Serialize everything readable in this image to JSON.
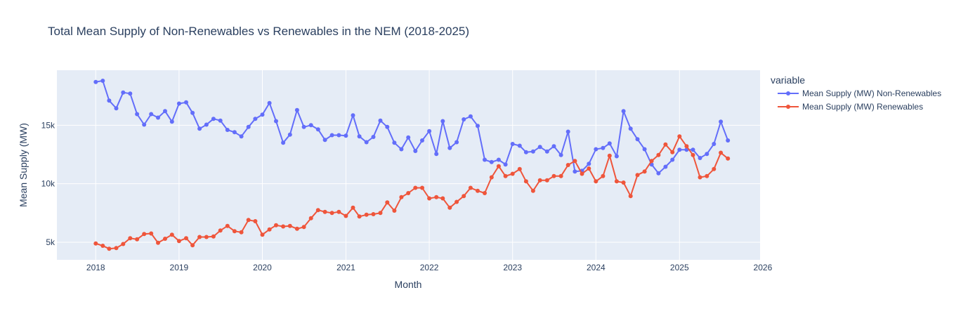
{
  "chart_data": {
    "type": "line",
    "title": "Total Mean Supply of Non-Renewables vs Renewables in the NEM (2018-2025)",
    "xlabel": "Month",
    "ylabel": "Mean Supply (MW)",
    "legend_title": "variable",
    "legend_position": "top-right",
    "grid": true,
    "background_color": "#e5ecf6",
    "xlim": [
      "2017-07-15",
      "2025-12-20"
    ],
    "ylim": [
      3500,
      19700
    ],
    "x_ticks": [
      {
        "date": "2018-01-01",
        "label": "2018"
      },
      {
        "date": "2019-01-01",
        "label": "2019"
      },
      {
        "date": "2020-01-01",
        "label": "2020"
      },
      {
        "date": "2021-01-01",
        "label": "2021"
      },
      {
        "date": "2022-01-01",
        "label": "2022"
      },
      {
        "date": "2023-01-01",
        "label": "2023"
      },
      {
        "date": "2024-01-01",
        "label": "2024"
      },
      {
        "date": "2025-01-01",
        "label": "2025"
      },
      {
        "date": "2026-01-01",
        "label": "2026"
      }
    ],
    "y_ticks": [
      {
        "value": 5000,
        "label": "5k"
      },
      {
        "value": 10000,
        "label": "10k"
      },
      {
        "value": 15000,
        "label": "15k"
      }
    ],
    "x_start": "2018-01",
    "x_end": "2025-08",
    "series": [
      {
        "name": "Mean Supply (MW) Non-Renewables",
        "color": "#636efa",
        "values": [
          18700,
          18800,
          17100,
          16450,
          17800,
          17700,
          15950,
          15050,
          15950,
          15650,
          16200,
          15300,
          16850,
          16950,
          16050,
          14700,
          15050,
          15550,
          15400,
          14600,
          14400,
          14050,
          14850,
          15550,
          15900,
          16900,
          15350,
          13500,
          14200,
          16300,
          14850,
          15000,
          14650,
          13750,
          14150,
          14150,
          14100,
          15850,
          14050,
          13550,
          14000,
          15400,
          14850,
          13500,
          12950,
          13950,
          12800,
          13700,
          14500,
          12550,
          15350,
          13050,
          13550,
          15500,
          15750,
          14950,
          12050,
          11850,
          12050,
          11650,
          13400,
          13250,
          12700,
          12750,
          13150,
          12750,
          13200,
          12450,
          14450,
          11050,
          11100,
          11700,
          12950,
          13050,
          13450,
          12350,
          16200,
          14700,
          13800,
          12950,
          11650,
          10900,
          11450,
          12050,
          12900,
          12900,
          12900,
          12200,
          12550,
          13400,
          15300,
          13700
        ]
      },
      {
        "name": "Mean Supply (MW) Renewables",
        "color": "#ef553b",
        "values": [
          4900,
          4700,
          4450,
          4500,
          4850,
          5350,
          5250,
          5700,
          5750,
          4950,
          5300,
          5650,
          5100,
          5350,
          4750,
          5450,
          5450,
          5500,
          6000,
          6400,
          5950,
          5850,
          6900,
          6800,
          5650,
          6100,
          6450,
          6350,
          6400,
          6150,
          6300,
          7050,
          7750,
          7600,
          7500,
          7600,
          7250,
          7950,
          7200,
          7350,
          7400,
          7500,
          8400,
          7700,
          8850,
          9200,
          9650,
          9650,
          8750,
          8850,
          8750,
          7950,
          8450,
          8950,
          9650,
          9400,
          9200,
          10550,
          11500,
          10650,
          10850,
          11250,
          10200,
          9400,
          10300,
          10300,
          10650,
          10650,
          11600,
          11950,
          10850,
          11300,
          10200,
          10650,
          12400,
          10200,
          10100,
          8950,
          10750,
          11050,
          11950,
          12450,
          13350,
          12700,
          14050,
          13200,
          12450,
          10550,
          10650,
          11250,
          12650,
          12150
        ]
      }
    ]
  }
}
